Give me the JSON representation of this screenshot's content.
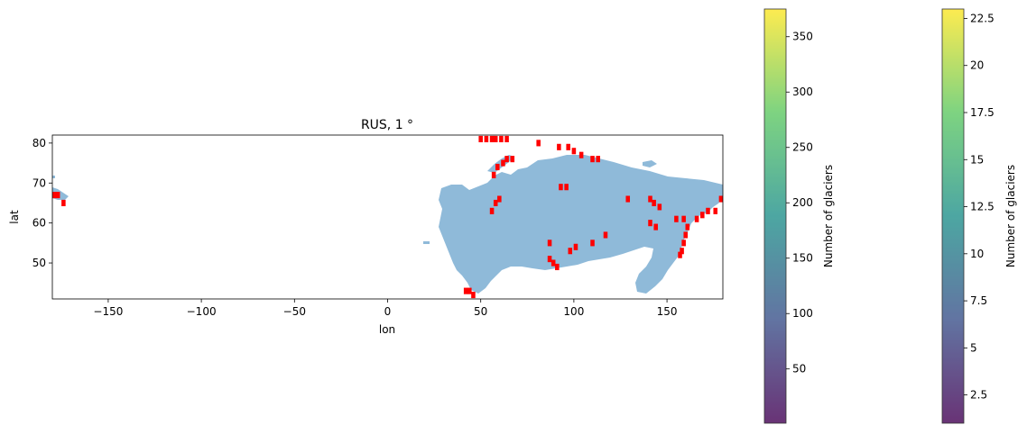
{
  "chart_data": {
    "type": "heatmap",
    "title": "RUS, 1 °",
    "xlabel": "lon",
    "ylabel": "lat",
    "xlim": [
      -180,
      180
    ],
    "ylim": [
      41,
      82
    ],
    "xticks": [
      -150,
      -100,
      -50,
      0,
      50,
      100,
      150
    ],
    "yticks": [
      50,
      60,
      70,
      80
    ],
    "land_color": "#8fbad9",
    "glacier_color": "#ff0000",
    "colorbars": [
      {
        "label": "Number of glaciers",
        "range": [
          1,
          375
        ],
        "ticks": [
          50,
          100,
          150,
          200,
          250,
          300,
          350
        ]
      },
      {
        "label": "Number of glaciers",
        "range": [
          1,
          23
        ],
        "ticks": [
          2.5,
          5.0,
          7.5,
          10.0,
          12.5,
          15.0,
          17.5,
          20.0,
          22.5
        ]
      }
    ],
    "glacier_cells": [
      {
        "lon": 42,
        "lat": 43
      },
      {
        "lon": 44,
        "lat": 43
      },
      {
        "lon": 46,
        "lat": 42
      },
      {
        "lon": 50,
        "lat": 81
      },
      {
        "lon": 53,
        "lat": 81
      },
      {
        "lon": 56,
        "lat": 81
      },
      {
        "lon": 58,
        "lat": 81
      },
      {
        "lon": 61,
        "lat": 81
      },
      {
        "lon": 64,
        "lat": 81
      },
      {
        "lon": 57,
        "lat": 72
      },
      {
        "lon": 59,
        "lat": 74
      },
      {
        "lon": 62,
        "lat": 75
      },
      {
        "lon": 64,
        "lat": 76
      },
      {
        "lon": 67,
        "lat": 76
      },
      {
        "lon": 56,
        "lat": 63
      },
      {
        "lon": 58,
        "lat": 65
      },
      {
        "lon": 60,
        "lat": 66
      },
      {
        "lon": 81,
        "lat": 80
      },
      {
        "lon": 92,
        "lat": 79
      },
      {
        "lon": 97,
        "lat": 79
      },
      {
        "lon": 100,
        "lat": 78
      },
      {
        "lon": 104,
        "lat": 77
      },
      {
        "lon": 93,
        "lat": 69
      },
      {
        "lon": 96,
        "lat": 69
      },
      {
        "lon": 110,
        "lat": 76
      },
      {
        "lon": 113,
        "lat": 76
      },
      {
        "lon": 129,
        "lat": 66
      },
      {
        "lon": 141,
        "lat": 66
      },
      {
        "lon": 143,
        "lat": 65
      },
      {
        "lon": 146,
        "lat": 64
      },
      {
        "lon": 141,
        "lat": 60
      },
      {
        "lon": 144,
        "lat": 59
      },
      {
        "lon": 87,
        "lat": 55
      },
      {
        "lon": 87,
        "lat": 51
      },
      {
        "lon": 89,
        "lat": 50
      },
      {
        "lon": 91,
        "lat": 49
      },
      {
        "lon": 98,
        "lat": 53
      },
      {
        "lon": 101,
        "lat": 54
      },
      {
        "lon": 110,
        "lat": 55
      },
      {
        "lon": 117,
        "lat": 57
      },
      {
        "lon": 155,
        "lat": 61
      },
      {
        "lon": 159,
        "lat": 61
      },
      {
        "lon": 161,
        "lat": 59
      },
      {
        "lon": 160,
        "lat": 57
      },
      {
        "lon": 159,
        "lat": 55
      },
      {
        "lon": 158,
        "lat": 53
      },
      {
        "lon": 157,
        "lat": 52
      },
      {
        "lon": 166,
        "lat": 61
      },
      {
        "lon": 169,
        "lat": 62
      },
      {
        "lon": 172,
        "lat": 63
      },
      {
        "lon": 176,
        "lat": 63
      },
      {
        "lon": 179,
        "lat": 66
      },
      {
        "lon": -179,
        "lat": 67
      },
      {
        "lon": -177,
        "lat": 67
      },
      {
        "lon": -174,
        "lat": 65
      }
    ]
  }
}
